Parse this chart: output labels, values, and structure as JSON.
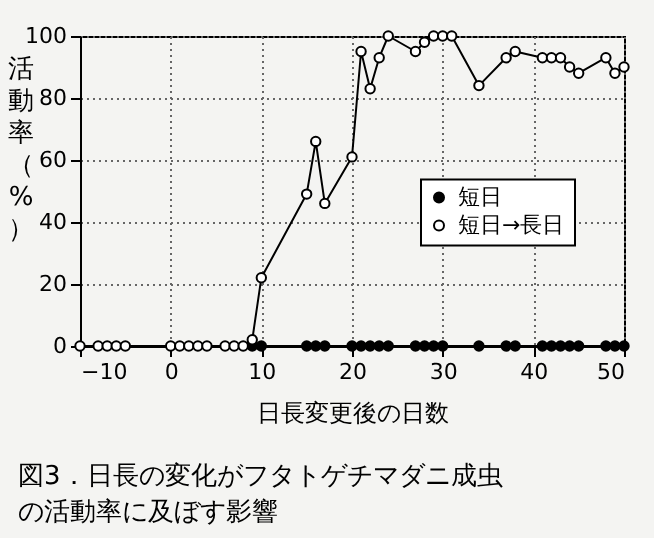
{
  "chart_data": {
    "type": "line",
    "title": "図3．日長の変化がフタトゲチマダニ成虫の活動率に及ぼす影響",
    "xlabel": "日長変更後の日数",
    "ylabel": "活動率（%）",
    "xlim": [
      -10,
      50
    ],
    "xticks": [
      -10,
      0,
      10,
      20,
      30,
      40,
      50
    ],
    "ylim": [
      0,
      100
    ],
    "yticks": [
      0,
      20,
      40,
      60,
      80,
      100
    ],
    "grid": true,
    "legend": "right",
    "marker": "circle",
    "series": [
      {
        "name": "短日",
        "color": "#000000",
        "x": [
          9,
          10,
          15,
          16,
          17,
          20,
          21,
          22,
          23,
          24,
          27,
          28,
          29,
          30,
          34,
          37,
          38,
          41,
          42,
          43,
          44,
          45,
          48,
          49,
          50
        ],
        "values": [
          0,
          0,
          0,
          0,
          0,
          0,
          0,
          0,
          0,
          0,
          0,
          0,
          0,
          0,
          0,
          0,
          0,
          0,
          0,
          0,
          0,
          0,
          0,
          0,
          0
        ]
      },
      {
        "name": "短日→長日",
        "color": "#000000",
        "x": [
          -10,
          -8,
          -7,
          -6,
          -5,
          0,
          1,
          2,
          3,
          4,
          6,
          7,
          8,
          9,
          10,
          15,
          16,
          17,
          20,
          21,
          22,
          23,
          24,
          27,
          28,
          29,
          30,
          31,
          34,
          37,
          38,
          41,
          42,
          43,
          44,
          45,
          48,
          49,
          50
        ],
        "values": [
          0,
          0,
          0,
          0,
          0,
          0,
          0,
          0,
          0,
          0,
          0,
          0,
          0,
          2,
          22,
          49,
          66,
          46,
          61,
          95,
          83,
          93,
          100,
          95,
          98,
          100,
          100,
          100,
          84,
          93,
          95,
          93,
          93,
          93,
          90,
          88,
          93,
          88,
          90
        ]
      }
    ]
  }
}
